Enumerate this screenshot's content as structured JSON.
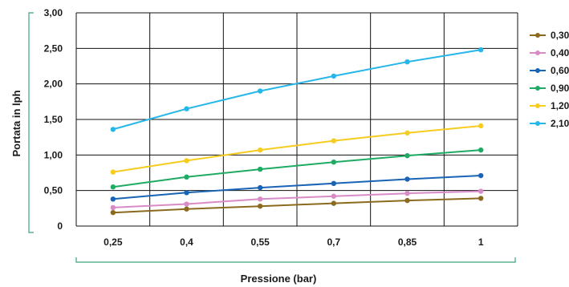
{
  "chart_data": {
    "type": "line",
    "title": "",
    "xlabel": "Pressione (bar)",
    "ylabel": "Portata in lph",
    "categories": [
      "0,25",
      "0,4",
      "0,55",
      "0,7",
      "0,85",
      "1"
    ],
    "yticks": [
      "0",
      "0,50",
      "1,00",
      "1,50",
      "2,00",
      "2,50",
      "3,00"
    ],
    "ylim": [
      0,
      3
    ],
    "grid": true,
    "legend_position": "right",
    "series": [
      {
        "name": "0,30",
        "color": "#8b6a1e",
        "values": [
          0.19,
          0.24,
          0.28,
          0.32,
          0.36,
          0.39
        ]
      },
      {
        "name": "0,40",
        "color": "#d98bc7",
        "values": [
          0.26,
          0.31,
          0.38,
          0.42,
          0.46,
          0.49
        ]
      },
      {
        "name": "0,60",
        "color": "#1a64b5",
        "values": [
          0.38,
          0.47,
          0.54,
          0.6,
          0.66,
          0.71
        ]
      },
      {
        "name": "0,90",
        "color": "#1fab63",
        "values": [
          0.55,
          0.69,
          0.8,
          0.9,
          0.99,
          1.07
        ]
      },
      {
        "name": "1,20",
        "color": "#f6cc1f",
        "values": [
          0.76,
          0.92,
          1.07,
          1.2,
          1.31,
          1.41
        ]
      },
      {
        "name": "2,10",
        "color": "#25b6ea",
        "values": [
          1.36,
          1.65,
          1.9,
          2.11,
          2.31,
          2.48
        ]
      }
    ],
    "colors": {
      "axis_accent": "#3aa57a",
      "grid": "#111111",
      "text": "#1a1a1a"
    }
  }
}
